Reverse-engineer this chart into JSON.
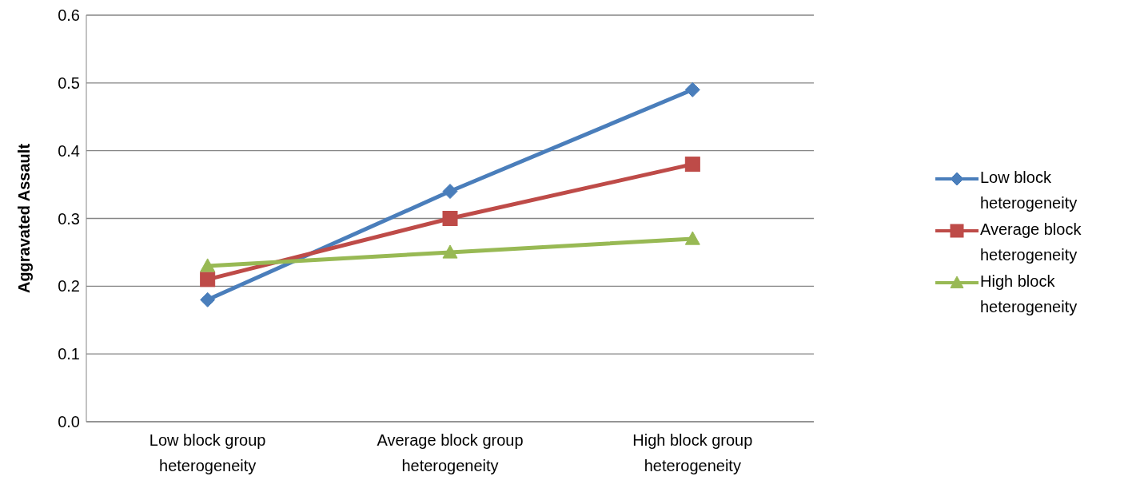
{
  "chart_data": {
    "type": "line",
    "ylabel": "Aggravated Assault",
    "categories": [
      "Low block group heterogeneity",
      "Average block group heterogeneity",
      "High block group heterogeneity"
    ],
    "series": [
      {
        "name": "Low block heterogeneity",
        "color": "#4a7ebb",
        "marker": "diamond",
        "values": [
          0.18,
          0.34,
          0.49
        ]
      },
      {
        "name": "Average block heterogeneity",
        "color": "#be4b48",
        "marker": "square",
        "values": [
          0.21,
          0.3,
          0.38
        ]
      },
      {
        "name": "High block heterogeneity",
        "color": "#98b954",
        "marker": "triangle",
        "values": [
          0.23,
          0.25,
          0.27
        ]
      }
    ],
    "ylim": [
      0,
      0.6
    ],
    "yticks": [
      {
        "value": 0,
        "label": "0.0"
      },
      {
        "value": 0.1,
        "label": "0.1"
      },
      {
        "value": 0.2,
        "label": "0.2"
      },
      {
        "value": 0.3,
        "label": "0.3"
      },
      {
        "value": 0.4,
        "label": "0.4"
      },
      {
        "value": 0.5,
        "label": "0.5"
      },
      {
        "value": 0.6,
        "label": "0.6"
      }
    ],
    "grid": "y",
    "legend": "right"
  }
}
